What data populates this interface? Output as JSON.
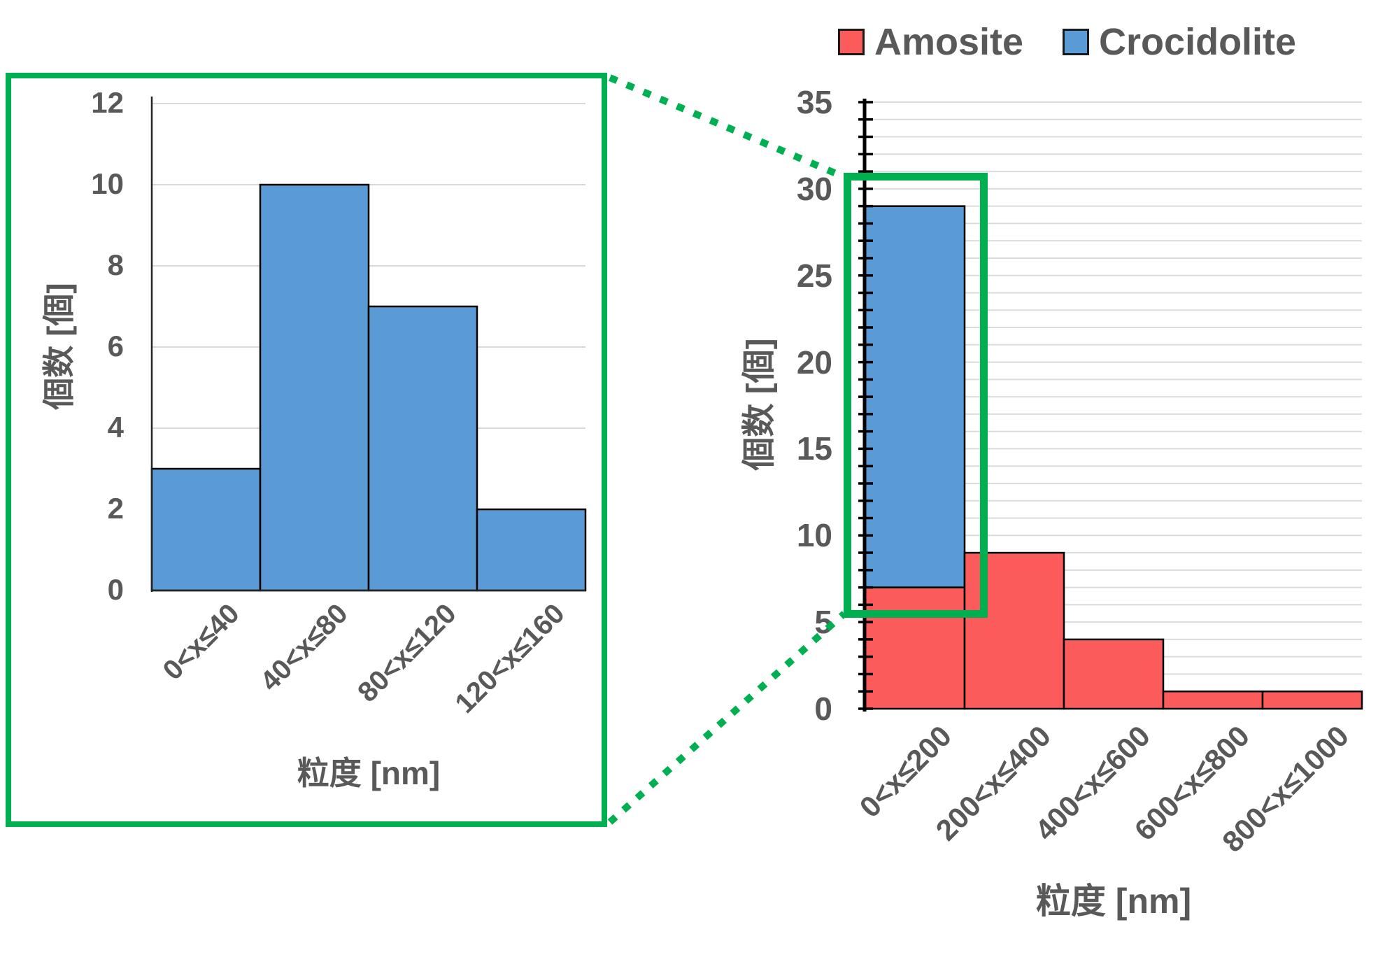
{
  "legend": {
    "items": [
      {
        "label": "Amosite",
        "color": "#FC5B5B"
      },
      {
        "label": "Crocidolite",
        "color": "#5B9BD5"
      }
    ]
  },
  "chart_data": [
    {
      "id": "inset-crocidolite-detail",
      "type": "bar",
      "categories": [
        "0<x≤40",
        "40<x≤80",
        "80<x≤120",
        "120<x≤160"
      ],
      "values": [
        3,
        10,
        7,
        2
      ],
      "series_name": "Crocidolite",
      "bar_color": "#5B9BD5",
      "xlabel": "粒度 [nm]",
      "ylabel": "個数 [個]",
      "ylim": [
        0,
        12
      ],
      "ytick_step": 2,
      "grid": "horizontal every 2",
      "legend_position": "none"
    },
    {
      "id": "main-size-distribution",
      "type": "bar",
      "subtype": "stacked",
      "categories": [
        "0<x≤200",
        "200<x≤400",
        "400<x≤600",
        "600<x≤800",
        "800<x≤1000"
      ],
      "series": [
        {
          "name": "Amosite",
          "color": "#FC5B5B",
          "values": [
            7,
            9,
            4,
            1,
            1
          ]
        },
        {
          "name": "Crocidolite",
          "color": "#5B9BD5",
          "values": [
            22,
            0,
            0,
            0,
            0
          ]
        }
      ],
      "xlabel": "粒度 [nm]",
      "ylabel": "個数 [個]",
      "ylim": [
        0,
        35
      ],
      "ytick_label_step": 5,
      "minor_grid_step": 1,
      "minor_tick_step": 1,
      "legend_position": "top"
    }
  ],
  "callout": {
    "color": "#00B050",
    "style_colors": {
      "text": "#595959",
      "gridline": "#D9D9D9",
      "bar_outline": "#000000"
    }
  }
}
